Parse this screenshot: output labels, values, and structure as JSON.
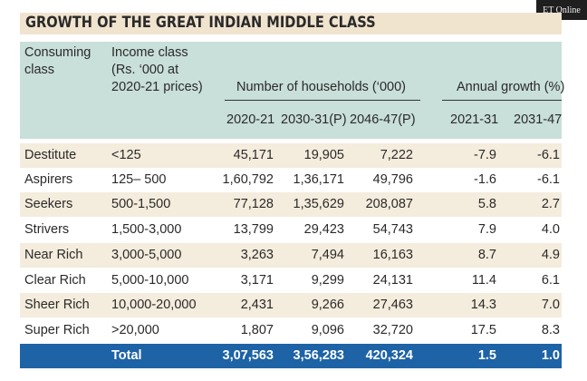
{
  "title": "GROWTH OF THE GREAT INDIAN MIDDLE CLASS",
  "watermark": "ET Online",
  "headers": {
    "consuming_class": "Consuming\nclass",
    "income_class": "Income class\n(Rs. ‘000 at\n2020-21 prices)",
    "households_group": "Number of households (‘000)",
    "growth_group": "Annual growth (%)",
    "columns": [
      "2020-21",
      "2030-31(P)",
      "2046-47(P)",
      "2021-31",
      "2031-47"
    ]
  },
  "rows": [
    {
      "class": "Destitute",
      "income": "<125",
      "h2020": "45,171",
      "h2030": "19,905",
      "h2046": "7,222",
      "g2131": "-7.9",
      "g3147": "-6.1"
    },
    {
      "class": "Aspirers",
      "income": "125– 500",
      "h2020": "1,60,792",
      "h2030": "1,36,171",
      "h2046": "49,796",
      "g2131": "-1.6",
      "g3147": "-6.1"
    },
    {
      "class": "Seekers",
      "income": "500-1,500",
      "h2020": "77,128",
      "h2030": "1,35,629",
      "h2046": "208,087",
      "g2131": "5.8",
      "g3147": "2.7"
    },
    {
      "class": "Strivers",
      "income": "1,500-3,000",
      "h2020": "13,799",
      "h2030": "29,423",
      "h2046": "54,743",
      "g2131": "7.9",
      "g3147": "4.0"
    },
    {
      "class": "Near Rich",
      "income": "3,000-5,000",
      "h2020": "3,263",
      "h2030": "7,494",
      "h2046": "16,163",
      "g2131": "8.7",
      "g3147": "4.9"
    },
    {
      "class": "Clear Rich",
      "income": "5,000-10,000",
      "h2020": "3,171",
      "h2030": "9,299",
      "h2046": "24,131",
      "g2131": "11.4",
      "g3147": "6.1"
    },
    {
      "class": "Sheer Rich",
      "income": "10,000-20,000",
      "h2020": "2,431",
      "h2030": "9,266",
      "h2046": "27,463",
      "g2131": "14.3",
      "g3147": "7.0"
    },
    {
      "class": "Super Rich",
      "income": ">20,000",
      "h2020": "1,807",
      "h2030": "9,096",
      "h2046": "32,720",
      "g2131": "17.5",
      "g3147": "8.3"
    }
  ],
  "total": {
    "label": "Total",
    "h2020": "3,07,563",
    "h2030": "3,56,283",
    "h2046": "420,324",
    "g2131": "1.5",
    "g3147": "1.0"
  }
}
